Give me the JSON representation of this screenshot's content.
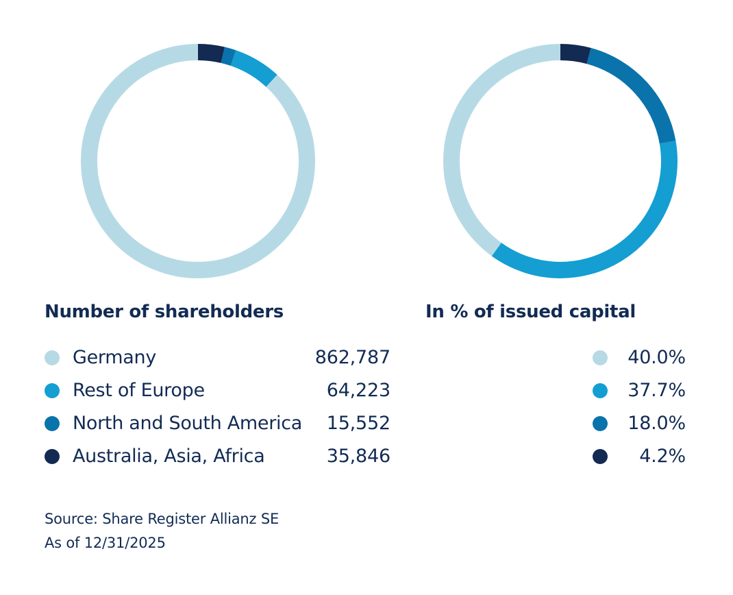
{
  "colors": {
    "germany": "#b6dae5",
    "rest_of_europe": "#149ed2",
    "north_south_america": "#0a73ab",
    "australia_asia_africa": "#132a52",
    "text": "#122b54"
  },
  "chart_data": [
    {
      "type": "pie",
      "title": "Number of shareholders",
      "categories": [
        "Germany",
        "Rest of Europe",
        "North and South America",
        "Australia, Asia, Africa"
      ],
      "values": [
        862787,
        64223,
        15552,
        35846
      ],
      "value_labels": [
        "862,787",
        "64,223",
        "15,552",
        "35,846"
      ],
      "colors": [
        "#b6dae5",
        "#149ed2",
        "#0a73ab",
        "#132a52"
      ],
      "legend": "bottom"
    },
    {
      "type": "pie",
      "title": "In % of issued capital",
      "categories": [
        "Germany",
        "Rest of Europe",
        "North and South America",
        "Australia, Asia, Africa"
      ],
      "values": [
        40.0,
        37.7,
        18.0,
        4.2
      ],
      "value_labels": [
        "40.0%",
        "37.7%",
        "18.0%",
        "4.2%"
      ],
      "colors": [
        "#b6dae5",
        "#149ed2",
        "#0a73ab",
        "#132a52"
      ],
      "legend": "bottom"
    }
  ],
  "footer": {
    "source": "Source: Share Register Allianz SE",
    "as_of": "As of 12/31/2025"
  }
}
